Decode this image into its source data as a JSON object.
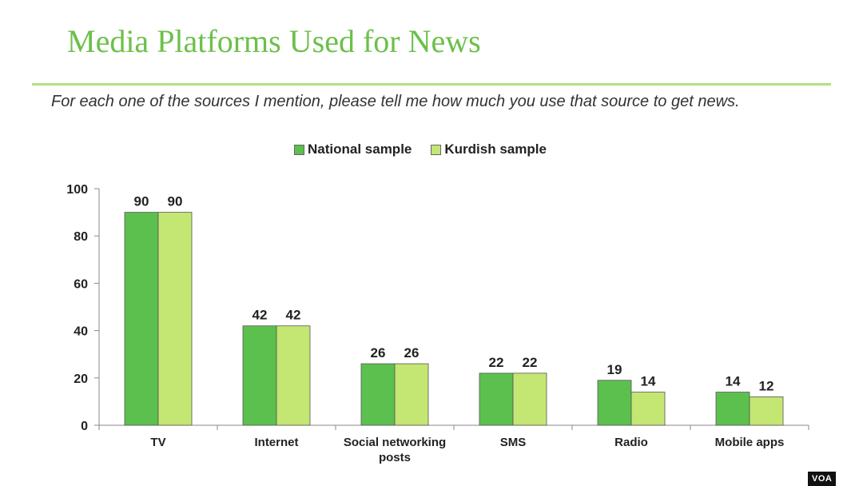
{
  "slide": {
    "title": "Media Platforms Used for News",
    "subtitle": "For each one of the sources I mention, please tell me how much you use that source to get news.",
    "badge": "VOA"
  },
  "colors": {
    "title": "#6cc04a",
    "rule": "#b5df7e",
    "national": "#5cc04e",
    "kurdish": "#c4e673"
  },
  "chart_data": {
    "type": "bar",
    "categories": [
      [
        "TV"
      ],
      [
        "Internet"
      ],
      [
        "Social networking",
        "posts"
      ],
      [
        "SMS"
      ],
      [
        "Radio"
      ],
      [
        "Mobile apps"
      ]
    ],
    "series": [
      {
        "name": "National sample",
        "values": [
          90,
          42,
          26,
          22,
          19,
          14
        ]
      },
      {
        "name": "Kurdish sample",
        "values": [
          90,
          42,
          26,
          22,
          14,
          12
        ]
      }
    ],
    "ylim": [
      0,
      100
    ],
    "yticks": [
      0,
      20,
      40,
      60,
      80,
      100
    ],
    "grid": false,
    "legend": "top-center"
  }
}
